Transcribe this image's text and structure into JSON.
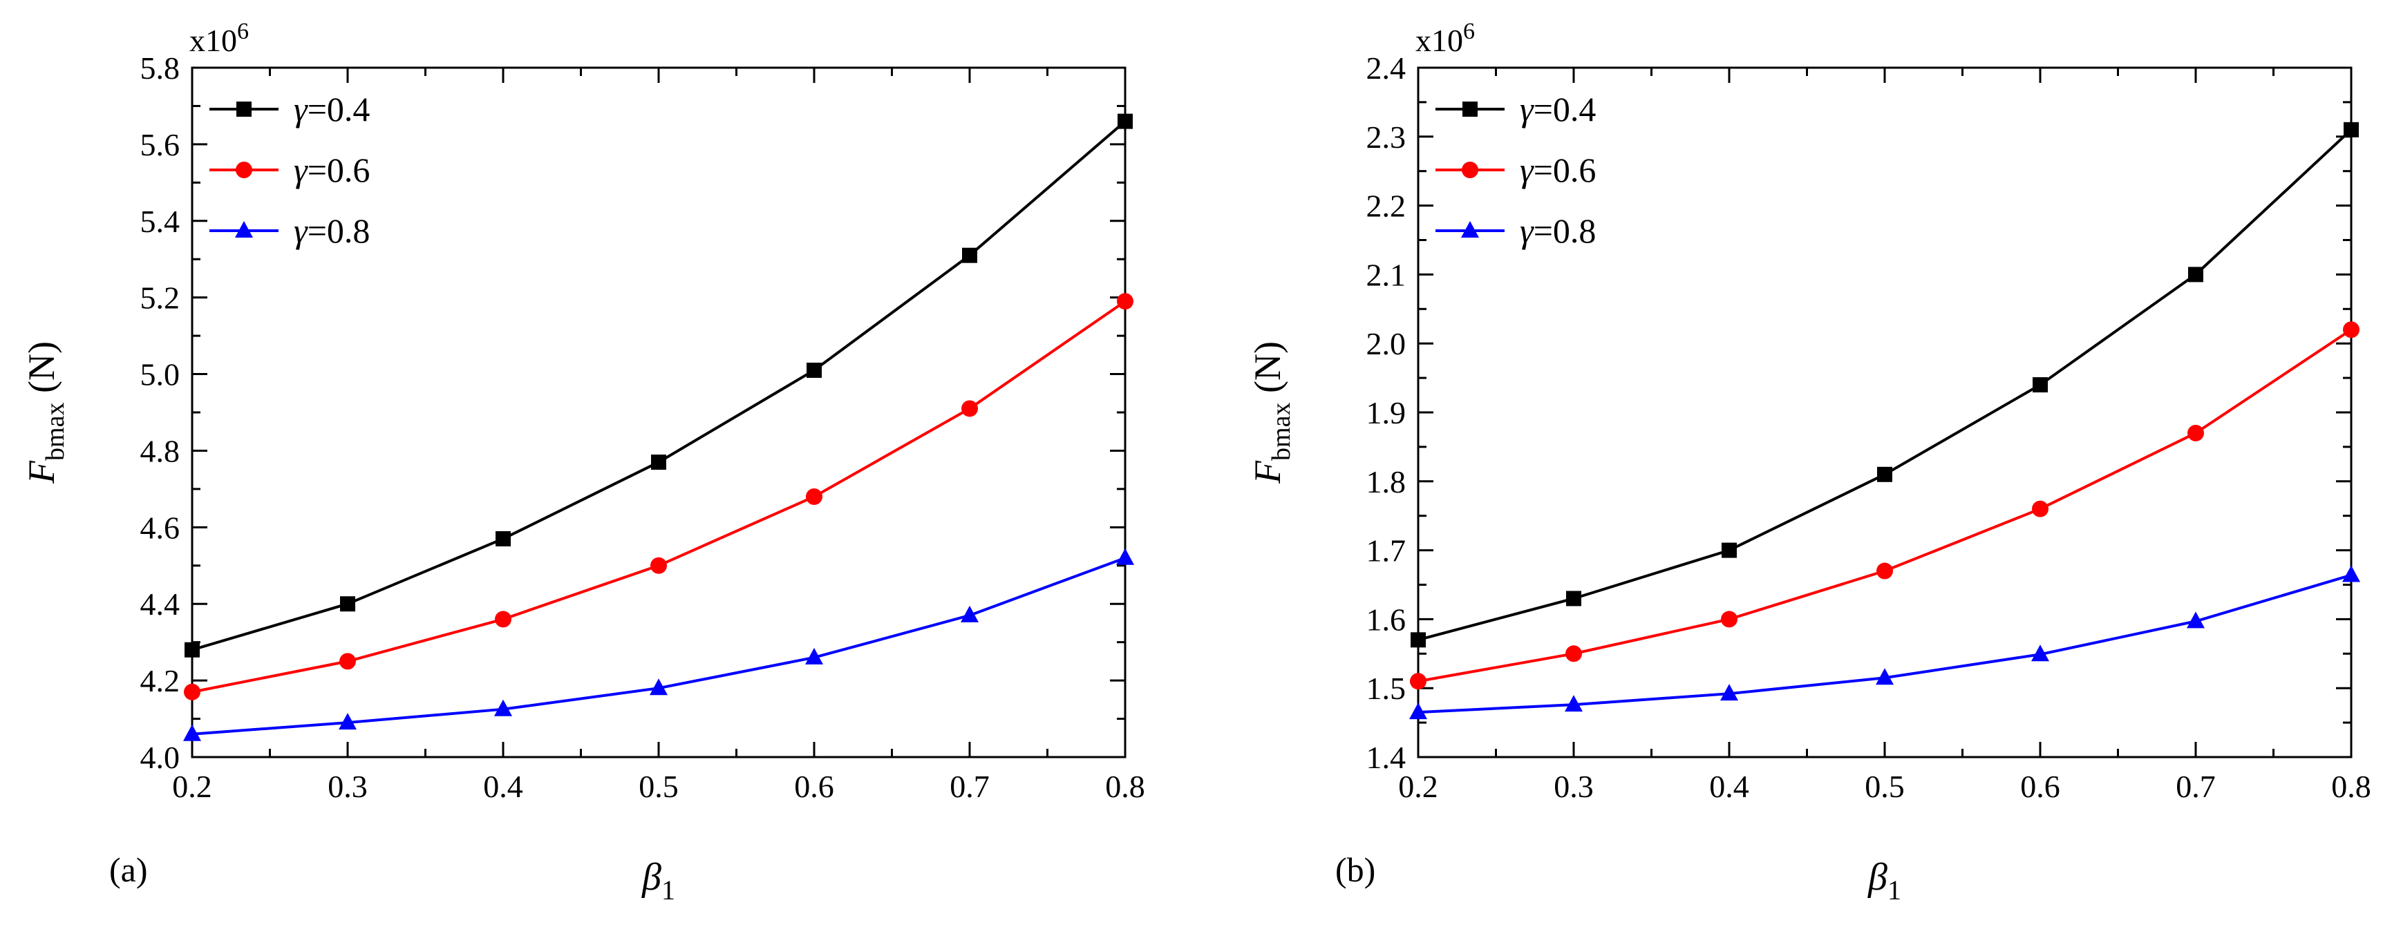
{
  "chart_data": [
    {
      "type": "line",
      "panel_label": "(a)",
      "xlabel": "β",
      "xlabel_sub": "1",
      "ylabel": "F",
      "ylabel_sub": "bmax",
      "ylabel_unit": " (N)",
      "y_multiplier": "x10",
      "y_multiplier_exp": "6",
      "x": [
        0.2,
        0.3,
        0.4,
        0.5,
        0.6,
        0.7,
        0.8
      ],
      "xlim": [
        0.2,
        0.8
      ],
      "ylim": [
        4.0,
        5.8
      ],
      "xticks": [
        "0.2",
        "0.3",
        "0.4",
        "0.5",
        "0.6",
        "0.7",
        "0.8"
      ],
      "yticks": [
        "4.0",
        "4.2",
        "4.4",
        "4.6",
        "4.8",
        "5.0",
        "5.2",
        "5.4",
        "5.6",
        "5.8"
      ],
      "legend_position": "top-left",
      "series": [
        {
          "name": "γ=0.4",
          "greek": "γ",
          "suffix": "=0.4",
          "color": "#000000",
          "marker": "square",
          "values": [
            4.28,
            4.4,
            4.57,
            4.77,
            5.01,
            5.31,
            5.66
          ]
        },
        {
          "name": "γ=0.6",
          "greek": "γ",
          "suffix": "=0.6",
          "color": "#ff0000",
          "marker": "circle",
          "values": [
            4.17,
            4.25,
            4.36,
            4.5,
            4.68,
            4.91,
            5.19
          ]
        },
        {
          "name": "γ=0.8",
          "greek": "γ",
          "suffix": "=0.8",
          "color": "#0000ff",
          "marker": "triangle",
          "values": [
            4.06,
            4.09,
            4.125,
            4.18,
            4.26,
            4.37,
            4.52
          ]
        }
      ]
    },
    {
      "type": "line",
      "panel_label": "(b)",
      "xlabel": "β",
      "xlabel_sub": "1",
      "ylabel": "F",
      "ylabel_sub": "bmax",
      "ylabel_unit": " (N)",
      "y_multiplier": "x10",
      "y_multiplier_exp": "6",
      "x": [
        0.2,
        0.3,
        0.4,
        0.5,
        0.6,
        0.7,
        0.8
      ],
      "xlim": [
        0.2,
        0.8
      ],
      "ylim": [
        1.4,
        2.4
      ],
      "xticks": [
        "0.2",
        "0.3",
        "0.4",
        "0.5",
        "0.6",
        "0.7",
        "0.8"
      ],
      "yticks": [
        "1.4",
        "1.5",
        "1.6",
        "1.7",
        "1.8",
        "1.9",
        "2.0",
        "2.1",
        "2.2",
        "2.3",
        "2.4"
      ],
      "legend_position": "top-left",
      "series": [
        {
          "name": "γ=0.4",
          "greek": "γ",
          "suffix": "=0.4",
          "color": "#000000",
          "marker": "square",
          "values": [
            1.57,
            1.63,
            1.7,
            1.81,
            1.94,
            2.1,
            2.31
          ]
        },
        {
          "name": "γ=0.6",
          "greek": "γ",
          "suffix": "=0.6",
          "color": "#ff0000",
          "marker": "circle",
          "values": [
            1.51,
            1.55,
            1.6,
            1.67,
            1.76,
            1.87,
            2.02
          ]
        },
        {
          "name": "γ=0.8",
          "greek": "γ",
          "suffix": "=0.8",
          "color": "#0000ff",
          "marker": "triangle",
          "values": [
            1.465,
            1.476,
            1.492,
            1.515,
            1.549,
            1.597,
            1.664
          ]
        }
      ]
    }
  ]
}
